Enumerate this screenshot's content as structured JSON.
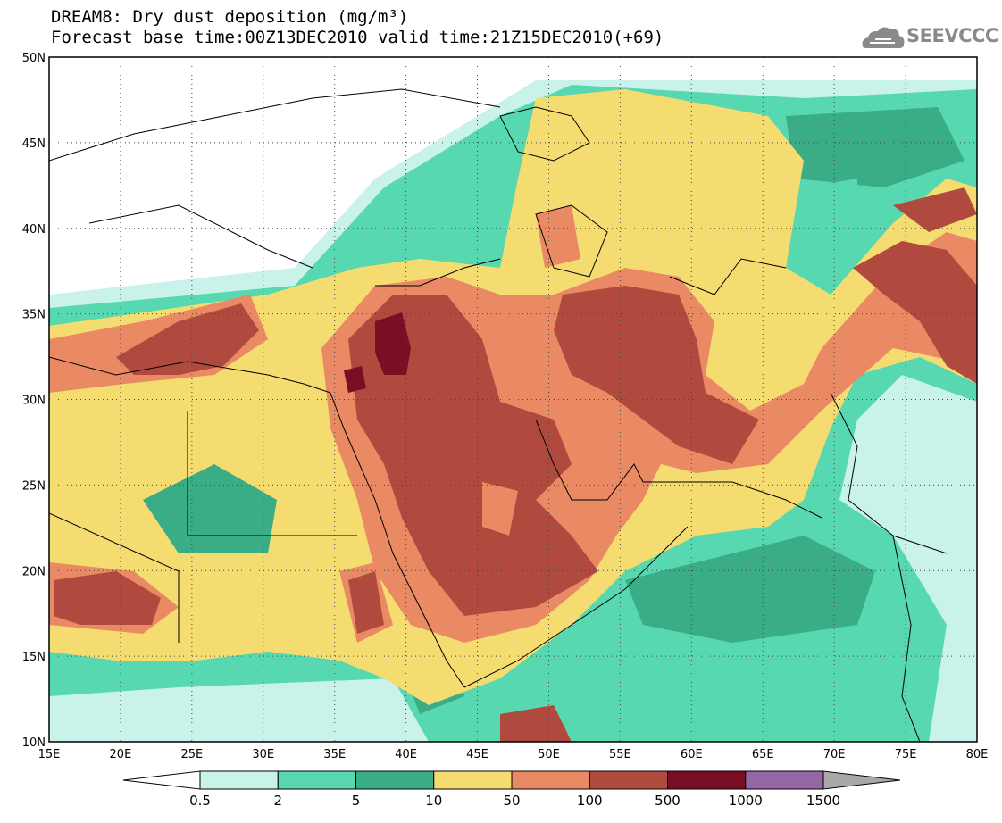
{
  "title": {
    "line1": "DREAM8: Dry dust deposition (mg/m³)",
    "line2": "Forecast base time:00Z13DEC2010 valid time:21Z15DEC2010(+69)"
  },
  "logo": {
    "text": "SEEVCCC",
    "icon": "cloud-icon"
  },
  "map": {
    "lon_range": [
      15,
      80
    ],
    "lat_range": [
      10,
      50
    ],
    "lon_ticks": [
      "15E",
      "20E",
      "25E",
      "30E",
      "35E",
      "40E",
      "45E",
      "50E",
      "55E",
      "60E",
      "65E",
      "70E",
      "75E",
      "80E"
    ],
    "lat_ticks": [
      "10N",
      "15N",
      "20N",
      "25N",
      "30N",
      "35N",
      "40N",
      "45N",
      "50N"
    ],
    "grid": "dotted"
  },
  "colorbar": {
    "labels": [
      "0.5",
      "2",
      "5",
      "10",
      "50",
      "100",
      "500",
      "1000",
      "1500"
    ],
    "colors": [
      "#c8f2ea",
      "#58d8b0",
      "#3aad86",
      "#f5dc70",
      "#e98a64",
      "#b04a3e",
      "#7a0e24",
      "#9466a4"
    ],
    "under_color": "#ffffff",
    "over_color": "#a8a8a8"
  }
}
